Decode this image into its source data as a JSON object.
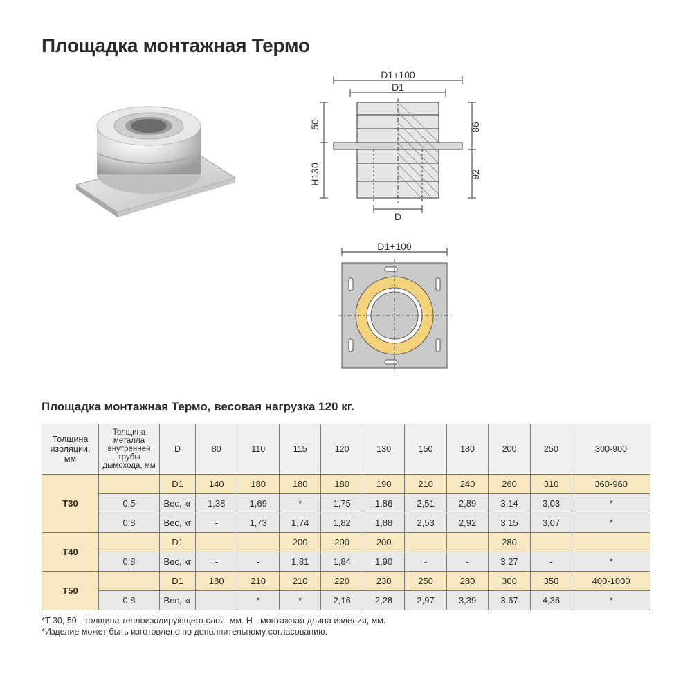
{
  "title": "Площадка монтажная Термо",
  "subtitle": "Площадка монтажная Термо, весовая нагрузка 120 кг.",
  "diagram": {
    "side": {
      "top_outer_label": "D1+100",
      "top_inner_label": "D1",
      "left_upper_dim": "50",
      "left_lower_dim": "H130",
      "right_upper_dim": "86",
      "right_lower_dim": "92",
      "bottom_label": "D"
    },
    "top_view": {
      "top_label": "D1+100"
    },
    "colors": {
      "line": "#555555",
      "plate_fill": "#c9c9c9",
      "pipe_fill": "#e6e6e6",
      "insulation": "#f2d27a",
      "hatch": "#888888"
    }
  },
  "table": {
    "headers": [
      "Толщина изоляции, мм",
      "Толщина металла внутренней трубы дымохода, мм",
      "D",
      "80",
      "110",
      "115",
      "120",
      "130",
      "150",
      "180",
      "200",
      "250",
      "300-900"
    ],
    "groups": [
      {
        "label": "Т30",
        "rows": [
          {
            "thickness": "",
            "param": "D1",
            "cells": [
              "140",
              "180",
              "180",
              "180",
              "190",
              "210",
              "240",
              "260",
              "310",
              "360-960"
            ],
            "style": "cream"
          },
          {
            "thickness": "0,5",
            "param": "Вес, кг",
            "cells": [
              "1,38",
              "1,69",
              "*",
              "1,75",
              "1,86",
              "2,51",
              "2,89",
              "3,14",
              "3,03",
              "*"
            ],
            "style": "grey"
          },
          {
            "thickness": "0,8",
            "param": "Вес, кг",
            "cells": [
              "-",
              "1,73",
              "1,74",
              "1,82",
              "1,88",
              "2,53",
              "2,92",
              "3,15",
              "3,07",
              "*"
            ],
            "style": "grey"
          }
        ]
      },
      {
        "label": "Т40",
        "rows": [
          {
            "thickness": "",
            "param": "D1",
            "cells": [
              "",
              "",
              "200",
              "200",
              "200",
              "",
              "",
              "280",
              "",
              ""
            ],
            "style": "cream"
          },
          {
            "thickness": "0,8",
            "param": "Вес, кг",
            "cells": [
              "-",
              "-",
              "1,81",
              "1,84",
              "1,90",
              "-",
              "-",
              "3,27",
              "-",
              "*"
            ],
            "style": "grey"
          }
        ]
      },
      {
        "label": "Т50",
        "rows": [
          {
            "thickness": "",
            "param": "D1",
            "cells": [
              "180",
              "210",
              "210",
              "220",
              "230",
              "250",
              "280",
              "300",
              "350",
              "400-1000"
            ],
            "style": "cream"
          },
          {
            "thickness": "0,8",
            "param": "Вес, кг",
            "cells": [
              "",
              "*",
              "*",
              "2,16",
              "2,28",
              "2,97",
              "3,39",
              "3,67",
              "4,36",
              "*"
            ],
            "style": "grey"
          }
        ]
      }
    ]
  },
  "footnotes": [
    "*Т 30, 50 - толщина теплоизолирующего слоя, мм. H - монтажная длина изделия, мм.",
    "*Изделие может быть изготовлено по дополнительному согласованию."
  ],
  "colors": {
    "cream": "#f6e8c0",
    "grey": "#e8e8e8",
    "border": "#777777",
    "text": "#2b2b2b"
  }
}
